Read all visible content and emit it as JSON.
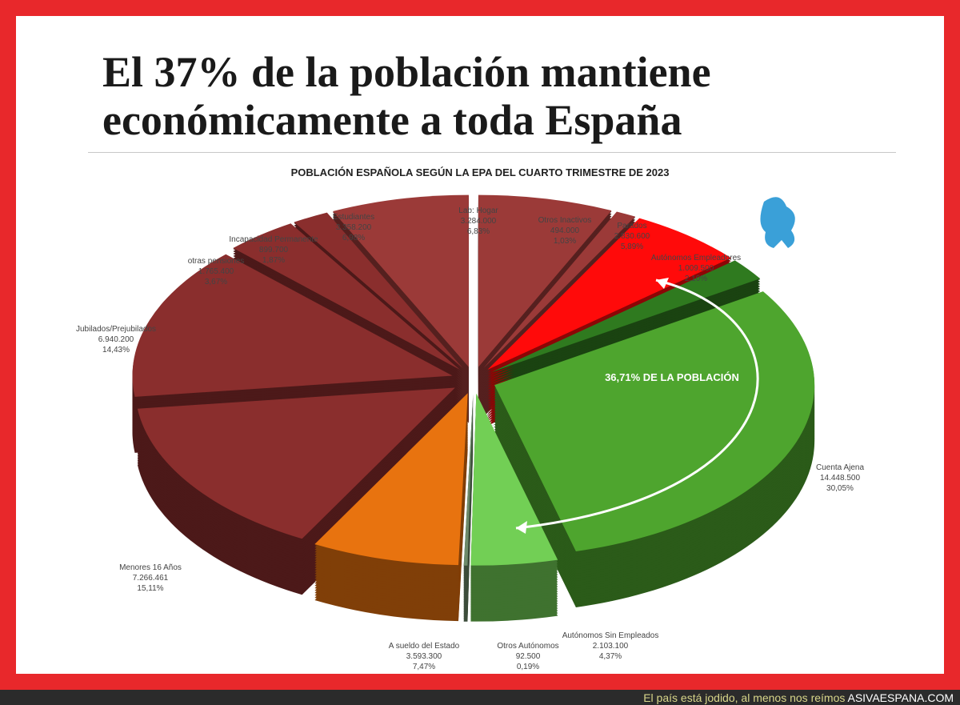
{
  "title": "El 37% de la población mantiene económicamente a toda España",
  "footer": {
    "text": "El país está jodido, al menos nos reímos",
    "brand": "ASIVAESPANA.COM"
  },
  "callout": "36,71% DE LA POBLACIÓN",
  "chart_data": {
    "type": "pie",
    "title": "POBLACIÓN ESPAÑOLA SEGÚN LA EPA DEL CUARTO TRIMESTRE DE 2023",
    "style": "3d-exploded",
    "slices": [
      {
        "label": "Lab: Hogar",
        "value": "3.284.000",
        "pct": "6,83%",
        "p": 6.83,
        "color": "#9b3a38"
      },
      {
        "label": "Otros Inactivos",
        "value": "494.000",
        "pct": "1,03%",
        "p": 1.03,
        "color": "#9b3a38"
      },
      {
        "label": "Parados",
        "value": "2.830.600",
        "pct": "5,89%",
        "p": 5.89,
        "color": "#ff0a0a"
      },
      {
        "label": "Autónomos Empleadores",
        "value": "1.009.500",
        "pct": "2,10%",
        "p": 2.1,
        "color": "#2f7a1f"
      },
      {
        "label": "Cuenta Ajena",
        "value": "14.448.500",
        "pct": "30,05%",
        "p": 30.05,
        "color": "#4ea52e"
      },
      {
        "label": "Autónomos Sin Empleados",
        "value": "2.103.100",
        "pct": "4,37%",
        "p": 4.37,
        "color": "#72cf55"
      },
      {
        "label": "Otros Autónomos",
        "value": "92.500",
        "pct": "0,19%",
        "p": 0.19,
        "color": "#6d8a6a"
      },
      {
        "label": "A sueldo del Estado",
        "value": "3.593.300",
        "pct": "7,47%",
        "p": 7.47,
        "color": "#e8730f"
      },
      {
        "label": "Menores 16 Años",
        "value": "7.266.461",
        "pct": "15,11%",
        "p": 15.11,
        "color": "#8a2e2d"
      },
      {
        "label": "Jubilados/Prejubilados",
        "value": "6.940.200",
        "pct": "14,43%",
        "p": 14.43,
        "color": "#8a2e2d"
      },
      {
        "label": "otras pensiones",
        "value": "1.765.400",
        "pct": "3,67%",
        "p": 3.67,
        "color": "#8a2e2d"
      },
      {
        "label": "Incapacidad Permanente",
        "value": "899.700",
        "pct": "1,87%",
        "p": 1.87,
        "color": "#8a2e2d"
      },
      {
        "label": "Estudiantes",
        "value": "3.358.200",
        "pct": "6,98%",
        "p": 6.98,
        "color": "#9b3a38"
      }
    ]
  }
}
